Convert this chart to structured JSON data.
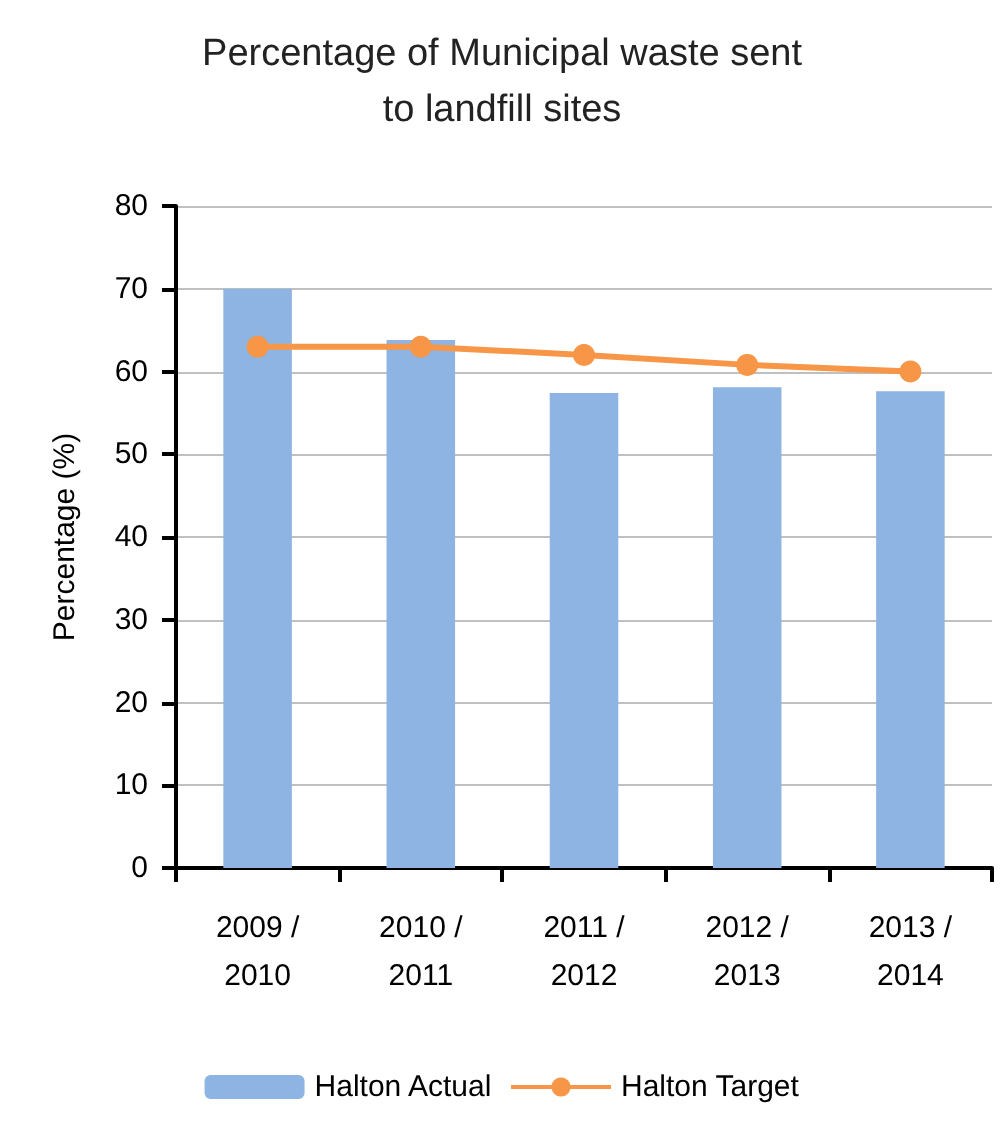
{
  "chart_data": {
    "type": "bar",
    "title": "Percentage of Municipal waste sent\nto landfill sites",
    "ylabel": "Percentage (%)",
    "categories": [
      "2009 /\n2010",
      "2010 /\n2011",
      "2011 /\n2012",
      "2012 /\n2013",
      "2013 /\n2014"
    ],
    "series": [
      {
        "name": "Halton Actual",
        "color": "#8eb4e3",
        "values": [
          70,
          63.8,
          57.4,
          58.1,
          57.6
        ]
      },
      {
        "name": "Halton Target",
        "type": "line",
        "color": "#f79646",
        "values": [
          63,
          63,
          62,
          60.8,
          60
        ]
      }
    ],
    "ylim": [
      0,
      80
    ],
    "yticks": [
      0,
      10,
      20,
      30,
      40,
      50,
      60,
      70,
      80
    ],
    "grid": "y",
    "legend": "bottom",
    "marker": "circle"
  }
}
